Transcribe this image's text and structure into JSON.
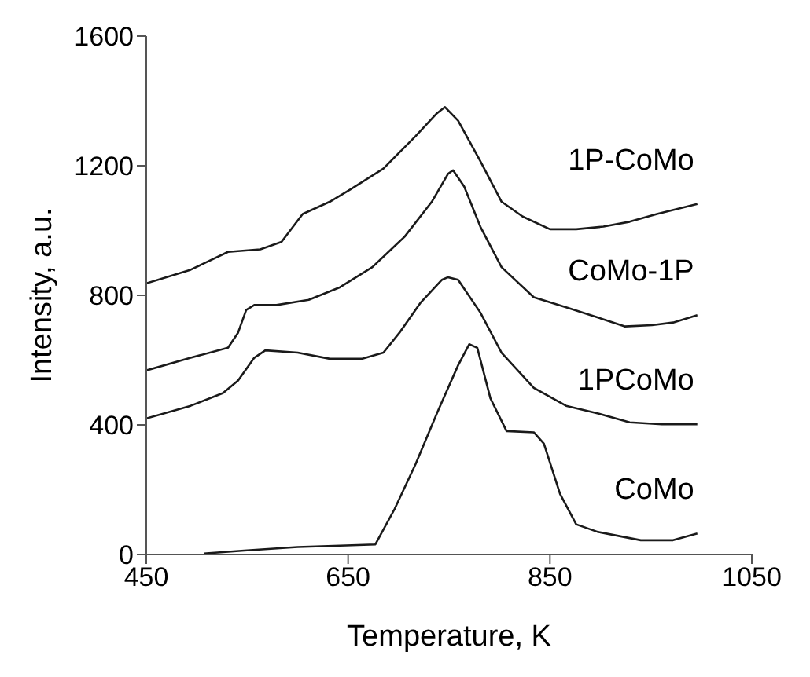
{
  "chart_data": {
    "type": "line",
    "xlabel": "Temperature, K",
    "ylabel": "Intensity, a.u.",
    "xlim": [
      450,
      1050
    ],
    "xticks": [
      450,
      650,
      850,
      1050
    ],
    "ylim": [
      0,
      1600
    ],
    "yticks": [
      0,
      400,
      800,
      1200,
      1600
    ],
    "marker": "none",
    "line_style": "solid",
    "series": [
      {
        "name": "1P-CoMo",
        "color": "#1a1a1a",
        "x": [
          450,
          494,
          531,
          563,
          584,
          605,
          632,
          653,
          685,
          717,
          738,
          746,
          759,
          781,
          802,
          823,
          850,
          876,
          903,
          929,
          956,
          996
        ],
        "values": [
          837,
          879,
          934,
          942,
          965,
          1051,
          1089,
          1128,
          1191,
          1292,
          1362,
          1381,
          1339,
          1214,
          1089,
          1043,
          1004,
          1004,
          1012,
          1027,
          1051,
          1082
        ]
      },
      {
        "name": "CoMo-1P",
        "color": "#1a1a1a",
        "x": [
          450,
          494,
          531,
          541,
          549,
          557,
          579,
          611,
          642,
          674,
          706,
          733,
          749,
          754,
          765,
          781,
          802,
          834,
          866,
          897,
          924,
          951,
          972,
          996
        ],
        "values": [
          568,
          607,
          638,
          685,
          755,
          770,
          770,
          786,
          825,
          887,
          981,
          1089,
          1175,
          1186,
          1136,
          1012,
          887,
          794,
          763,
          732,
          704,
          708,
          716,
          739
        ]
      },
      {
        "name": "1PCoMo",
        "color": "#1a1a1a",
        "x": [
          450,
          494,
          526,
          541,
          557,
          568,
          600,
          632,
          664,
          685,
          701,
          722,
          743,
          749,
          759,
          781,
          802,
          834,
          866,
          897,
          929,
          961,
          996
        ],
        "values": [
          420,
          459,
          498,
          537,
          607,
          630,
          623,
          604,
          604,
          623,
          685,
          778,
          848,
          856,
          848,
          747,
          623,
          514,
          459,
          436,
          408,
          402,
          402
        ]
      },
      {
        "name": "CoMo",
        "color": "#1a1a1a",
        "x": [
          507,
          547,
          600,
          648,
          677,
          696,
          717,
          738,
          759,
          770,
          778,
          791,
          807,
          834,
          844,
          860,
          876,
          897,
          940,
          972,
          996
        ],
        "values": [
          3,
          12,
          23,
          28,
          31,
          140,
          280,
          436,
          584,
          649,
          638,
          482,
          381,
          377,
          342,
          187,
          93,
          70,
          44,
          44,
          65
        ]
      }
    ]
  }
}
